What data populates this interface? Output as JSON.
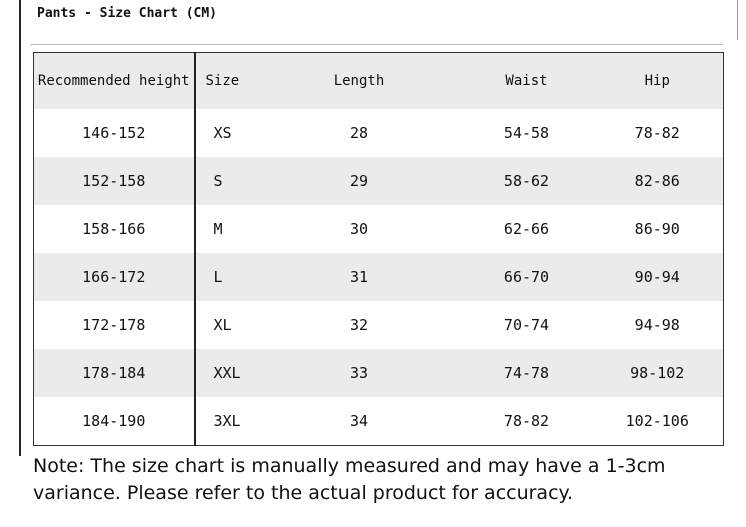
{
  "header": {
    "title": "Pants - Size Chart (CM)"
  },
  "table": {
    "columns": [
      "Recommended height",
      "Size",
      "Length",
      "Waist",
      "Hip"
    ],
    "rows": [
      [
        "146-152",
        "XS",
        "28",
        "54-58",
        "78-82"
      ],
      [
        "152-158",
        "S",
        "29",
        "58-62",
        "82-86"
      ],
      [
        "158-166",
        "M",
        "30",
        "62-66",
        "86-90"
      ],
      [
        "166-172",
        "L",
        "31",
        "66-70",
        "90-94"
      ],
      [
        "172-178",
        "XL",
        "32",
        "70-74",
        "94-98"
      ],
      [
        "178-184",
        "XXL",
        "33",
        "74-78",
        "98-102"
      ],
      [
        "184-190",
        "3XL",
        "34",
        "78-82",
        "102-106"
      ]
    ]
  },
  "note": {
    "text": "Note: The size chart is manually measured and may have a 1-3cm variance. Please refer to the actual product for accuracy."
  }
}
